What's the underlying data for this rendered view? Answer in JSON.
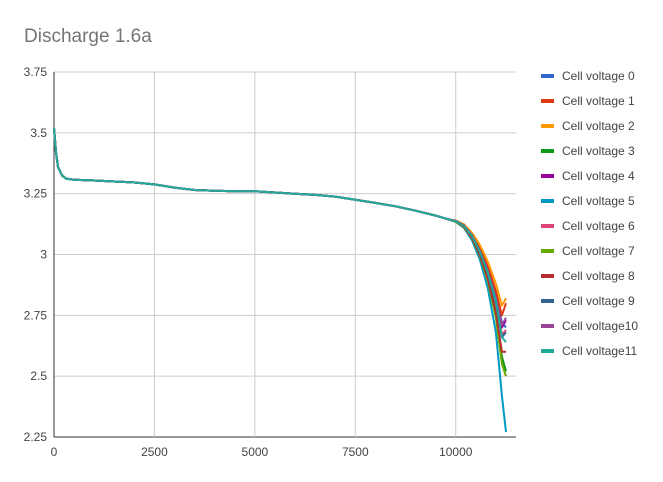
{
  "chart_data": {
    "type": "line",
    "title": "Discharge 1.6a",
    "xlabel": "",
    "ylabel": "",
    "xlim": [
      0,
      11500
    ],
    "ylim": [
      2.25,
      3.75
    ],
    "x_ticks": [
      0,
      2500,
      5000,
      7500,
      10000
    ],
    "y_ticks": [
      2.25,
      2.5,
      2.75,
      3,
      3.25,
      3.5,
      3.75
    ],
    "grid": true,
    "legend_position": "right",
    "x": [
      0,
      50,
      100,
      200,
      300,
      500,
      1000,
      1500,
      2000,
      2500,
      3000,
      3500,
      4000,
      4500,
      5000,
      5500,
      6000,
      6500,
      7000,
      7500,
      8000,
      8500,
      9000,
      9500,
      9800,
      10000,
      10200,
      10400,
      10600,
      10800,
      11000,
      11150,
      11250
    ],
    "series": [
      {
        "name": "Cell voltage 0",
        "color": "#3366cc",
        "values": [
          3.52,
          3.42,
          3.36,
          3.325,
          3.312,
          3.307,
          3.304,
          3.3,
          3.296,
          3.288,
          3.275,
          3.265,
          3.262,
          3.26,
          3.26,
          3.255,
          3.25,
          3.245,
          3.238,
          3.225,
          3.212,
          3.198,
          3.18,
          3.16,
          3.145,
          3.138,
          3.12,
          3.08,
          3.02,
          2.94,
          2.83,
          2.72,
          2.7
        ]
      },
      {
        "name": "Cell voltage 1",
        "color": "#dc3912",
        "values": [
          3.52,
          3.42,
          3.36,
          3.325,
          3.312,
          3.307,
          3.304,
          3.3,
          3.296,
          3.288,
          3.275,
          3.265,
          3.262,
          3.26,
          3.26,
          3.255,
          3.25,
          3.245,
          3.238,
          3.225,
          3.212,
          3.198,
          3.18,
          3.16,
          3.145,
          3.138,
          3.12,
          3.085,
          3.03,
          2.95,
          2.85,
          2.75,
          2.8
        ]
      },
      {
        "name": "Cell voltage 2",
        "color": "#ff9900",
        "values": [
          3.52,
          3.42,
          3.36,
          3.325,
          3.312,
          3.307,
          3.304,
          3.3,
          3.296,
          3.288,
          3.275,
          3.265,
          3.262,
          3.26,
          3.26,
          3.255,
          3.25,
          3.245,
          3.238,
          3.225,
          3.212,
          3.198,
          3.18,
          3.16,
          3.145,
          3.14,
          3.125,
          3.09,
          3.04,
          2.97,
          2.88,
          2.79,
          2.82
        ]
      },
      {
        "name": "Cell voltage 3",
        "color": "#109618",
        "values": [
          3.52,
          3.42,
          3.36,
          3.325,
          3.312,
          3.307,
          3.304,
          3.3,
          3.296,
          3.288,
          3.275,
          3.265,
          3.262,
          3.26,
          3.26,
          3.255,
          3.25,
          3.245,
          3.238,
          3.225,
          3.212,
          3.198,
          3.18,
          3.16,
          3.145,
          3.136,
          3.115,
          3.07,
          3.0,
          2.9,
          2.76,
          2.58,
          2.52
        ]
      },
      {
        "name": "Cell voltage 4",
        "color": "#990099",
        "values": [
          3.52,
          3.42,
          3.36,
          3.325,
          3.312,
          3.307,
          3.304,
          3.3,
          3.296,
          3.288,
          3.275,
          3.265,
          3.262,
          3.26,
          3.26,
          3.255,
          3.25,
          3.245,
          3.238,
          3.225,
          3.212,
          3.198,
          3.18,
          3.16,
          3.145,
          3.138,
          3.12,
          3.08,
          3.015,
          2.93,
          2.82,
          2.7,
          2.73
        ]
      },
      {
        "name": "Cell voltage 5",
        "color": "#0099c6",
        "values": [
          3.52,
          3.42,
          3.36,
          3.325,
          3.312,
          3.307,
          3.304,
          3.3,
          3.296,
          3.288,
          3.275,
          3.265,
          3.262,
          3.26,
          3.26,
          3.255,
          3.25,
          3.245,
          3.238,
          3.225,
          3.212,
          3.198,
          3.18,
          3.16,
          3.145,
          3.134,
          3.11,
          3.06,
          2.98,
          2.86,
          2.68,
          2.42,
          2.27
        ]
      },
      {
        "name": "Cell voltage 6",
        "color": "#dd4477",
        "values": [
          3.52,
          3.42,
          3.36,
          3.325,
          3.312,
          3.307,
          3.304,
          3.3,
          3.296,
          3.288,
          3.275,
          3.265,
          3.262,
          3.26,
          3.26,
          3.255,
          3.25,
          3.245,
          3.238,
          3.225,
          3.212,
          3.198,
          3.18,
          3.16,
          3.145,
          3.137,
          3.117,
          3.075,
          3.01,
          2.92,
          2.8,
          2.67,
          2.69
        ]
      },
      {
        "name": "Cell voltage 7",
        "color": "#66aa00",
        "values": [
          3.52,
          3.42,
          3.36,
          3.325,
          3.312,
          3.307,
          3.304,
          3.3,
          3.296,
          3.288,
          3.275,
          3.265,
          3.262,
          3.26,
          3.26,
          3.255,
          3.25,
          3.245,
          3.238,
          3.225,
          3.212,
          3.198,
          3.18,
          3.16,
          3.145,
          3.135,
          3.113,
          3.068,
          2.995,
          2.89,
          2.74,
          2.55,
          2.5
        ]
      },
      {
        "name": "Cell voltage 8",
        "color": "#b82e2e",
        "values": [
          3.52,
          3.42,
          3.36,
          3.325,
          3.312,
          3.307,
          3.304,
          3.3,
          3.296,
          3.288,
          3.275,
          3.265,
          3.262,
          3.26,
          3.26,
          3.255,
          3.25,
          3.245,
          3.238,
          3.225,
          3.212,
          3.198,
          3.18,
          3.16,
          3.145,
          3.136,
          3.115,
          3.07,
          3.0,
          2.9,
          2.76,
          2.6,
          2.6
        ]
      },
      {
        "name": "Cell voltage 9",
        "color": "#316395",
        "values": [
          3.52,
          3.42,
          3.36,
          3.325,
          3.312,
          3.307,
          3.304,
          3.3,
          3.296,
          3.288,
          3.275,
          3.265,
          3.262,
          3.26,
          3.26,
          3.255,
          3.25,
          3.245,
          3.238,
          3.225,
          3.212,
          3.198,
          3.18,
          3.16,
          3.145,
          3.137,
          3.118,
          3.076,
          3.01,
          2.92,
          2.8,
          2.66,
          2.68
        ]
      },
      {
        "name": "Cell voltage10",
        "color": "#994499",
        "values": [
          3.52,
          3.42,
          3.36,
          3.325,
          3.312,
          3.307,
          3.304,
          3.3,
          3.296,
          3.288,
          3.275,
          3.265,
          3.262,
          3.26,
          3.26,
          3.255,
          3.25,
          3.245,
          3.238,
          3.225,
          3.212,
          3.198,
          3.18,
          3.16,
          3.145,
          3.138,
          3.12,
          3.08,
          3.015,
          2.93,
          2.82,
          2.71,
          2.74
        ]
      },
      {
        "name": "Cell voltage11",
        "color": "#22aa99",
        "values": [
          3.52,
          3.42,
          3.36,
          3.325,
          3.312,
          3.307,
          3.304,
          3.3,
          3.296,
          3.288,
          3.275,
          3.265,
          3.262,
          3.26,
          3.26,
          3.255,
          3.25,
          3.245,
          3.238,
          3.225,
          3.212,
          3.198,
          3.18,
          3.16,
          3.145,
          3.137,
          3.118,
          3.077,
          3.012,
          2.925,
          2.81,
          2.66,
          2.64
        ]
      }
    ]
  }
}
